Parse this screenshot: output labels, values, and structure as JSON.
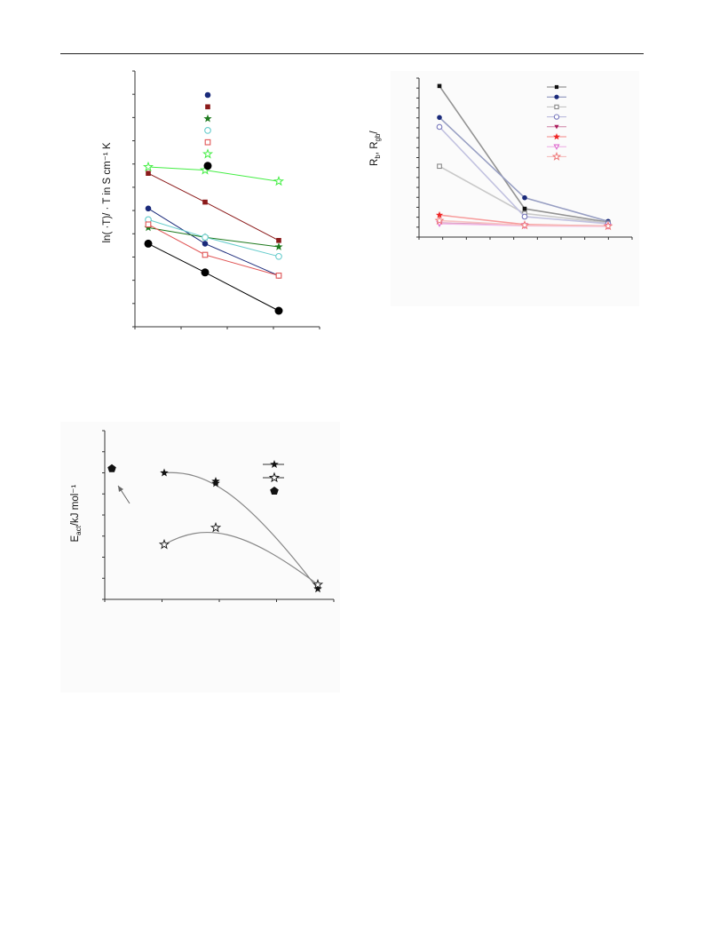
{
  "page": {
    "header_rule": true
  },
  "figure_a": {
    "ylabel": "ln( ·T)/  · T in S cm⁻¹ K",
    "chart_data": {
      "type": "line",
      "title": "",
      "xlabel": "",
      "ylabel": "ln( ·T)/  · T in S cm⁻¹ K",
      "grid": false,
      "legend": "top-center, markers only",
      "x": [
        1,
        2,
        3
      ],
      "series": [
        {
          "marker": "circle-filled",
          "color": "#1a2a7a",
          "values": [
            6.2,
            5.1,
            4.1
          ]
        },
        {
          "marker": "square-filled",
          "color": "#8b1a1a",
          "values": [
            7.3,
            6.4,
            5.2
          ]
        },
        {
          "marker": "star-filled",
          "color": "#1e7a1e",
          "values": [
            5.6,
            5.3,
            5.0
          ]
        },
        {
          "marker": "circle-open",
          "color": "#66cccc",
          "values": [
            5.85,
            5.3,
            4.7
          ]
        },
        {
          "marker": "square-open",
          "color": "#e05555",
          "values": [
            5.7,
            4.75,
            4.1
          ]
        },
        {
          "marker": "star-open",
          "color": "#44ee44",
          "values": [
            7.5,
            7.4,
            7.05
          ]
        },
        {
          "marker": "circle-filled-large",
          "color": "#000000",
          "values": [
            5.1,
            4.2,
            3.0
          ]
        }
      ],
      "xlim": [
        0.9,
        3.4
      ],
      "ylim": [
        2.5,
        10.5
      ]
    }
  },
  "figure_b": {
    "ylabel_main": "R",
    "ylabel_sub1": "b",
    "ylabel_sep": ", R",
    "ylabel_sub2": "gb",
    "ylabel_end": "/",
    "chart_data": {
      "type": "line",
      "title": "",
      "xlabel": "",
      "ylabel": "Rb, Rgb/",
      "grid": false,
      "legend": "top-right, markers with line stubs",
      "x": [
        1,
        2,
        3
      ],
      "series": [
        {
          "marker": "square-filled",
          "color": "#111111",
          "values": [
            9.0,
            1.2,
            0.35
          ]
        },
        {
          "marker": "circle-filled",
          "color": "#1a2a7a",
          "values": [
            7.0,
            1.9,
            0.4
          ]
        },
        {
          "marker": "square-open",
          "color": "#888888",
          "values": [
            3.9,
            0.9,
            0.3
          ]
        },
        {
          "marker": "circle-open",
          "color": "#7777bb",
          "values": [
            6.4,
            0.7,
            0.25
          ]
        },
        {
          "marker": "triangle-down-filled",
          "color": "#aa1a5a",
          "values": [
            0.3,
            0.15,
            0.12
          ]
        },
        {
          "marker": "star-filled",
          "color": "#ee2222",
          "values": [
            0.8,
            0.2,
            0.1
          ]
        },
        {
          "marker": "triangle-down-open",
          "color": "#dd66cc",
          "values": [
            0.25,
            0.12,
            0.08
          ]
        },
        {
          "marker": "star-open",
          "color": "#ee7777",
          "values": [
            0.45,
            0.15,
            0.1
          ]
        }
      ],
      "xlim": [
        0.8,
        3.3
      ],
      "ylim": [
        -0.6,
        9.5
      ]
    }
  },
  "figure_c": {
    "ylabel_main": "E",
    "ylabel_sub": "act",
    "ylabel_end": "/kJ mol⁻¹",
    "chart_data": {
      "type": "scatter",
      "title": "",
      "xlabel": "",
      "ylabel": "Eact/kJ mol⁻¹",
      "grid": false,
      "legend": "top-right",
      "series": [
        {
          "marker": "star-filled",
          "color": "#111111",
          "x": [
            1,
            2,
            4
          ],
          "y": [
            6.5,
            6.1,
            1.0
          ],
          "curve": true
        },
        {
          "marker": "star-filled-extra",
          "color": "#111111",
          "x": [
            2
          ],
          "y": [
            6.0
          ]
        },
        {
          "marker": "star-open",
          "color": "#222222",
          "x": [
            1,
            2,
            4
          ],
          "y": [
            3.1,
            3.9,
            1.2
          ],
          "curve": true
        },
        {
          "marker": "pentagon-filled",
          "color": "#111111",
          "x": [
            0
          ],
          "y": [
            6.7
          ]
        }
      ],
      "arrow": {
        "from": [
          0.35,
          4.5
        ],
        "to": [
          0.1,
          5.5
        ]
      },
      "xlim": [
        -0.1,
        4.2
      ],
      "ylim": [
        0.5,
        8.5
      ]
    }
  }
}
